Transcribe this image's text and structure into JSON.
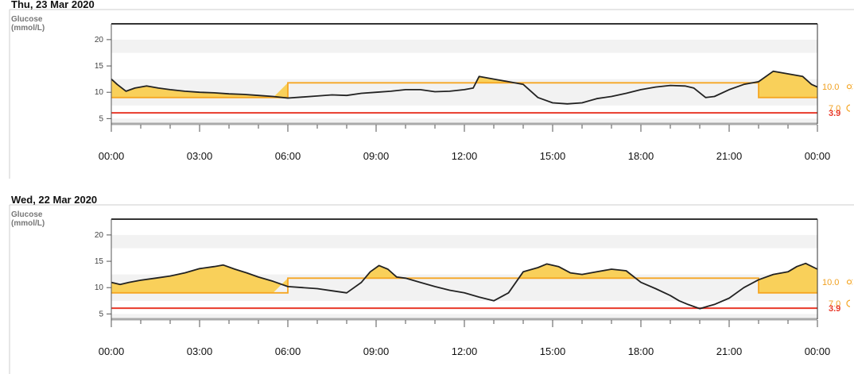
{
  "colors": {
    "target": "#f5a623",
    "fill": "#f9d05a",
    "low": "#e8392a",
    "curve": "#222222",
    "band": "#f2f2f2"
  },
  "chart_data": [
    {
      "type": "area",
      "title": "Thu, 23 Mar 2020",
      "ylabel": "Glucose\n(mmol/L)",
      "yticks": [
        "5",
        "10",
        "15",
        "20"
      ],
      "ylim": [
        4,
        23
      ],
      "xticks": [
        "00:00",
        "03:00",
        "06:00",
        "09:00",
        "12:00",
        "15:00",
        "18:00",
        "21:00",
        "00:00"
      ],
      "xlim": [
        0,
        24
      ],
      "target_series": [
        [
          0,
          9
        ],
        [
          6,
          9
        ],
        [
          6,
          11.8
        ],
        [
          22,
          11.8
        ],
        [
          22,
          9
        ],
        [
          24,
          9
        ]
      ],
      "low_threshold": 6.1,
      "range_labels": {
        "upper": "10.0",
        "lower": "7.0",
        "low": "3.9"
      },
      "range_icons": {
        "upper": "sun-icon",
        "lower": "moon-icon"
      },
      "series": [
        {
          "x": [
            0,
            0.2,
            0.5,
            0.8,
            1.2,
            1.6,
            2.0,
            2.5,
            3.0,
            3.5,
            4.0,
            4.5,
            5.0,
            5.5,
            6.0,
            6.5,
            7.0,
            7.5,
            8.0,
            8.5,
            9.0,
            9.5,
            10.0,
            10.5,
            11.0,
            11.5,
            12.0,
            12.3,
            12.5,
            13.0,
            13.5,
            14.0,
            14.5,
            15.0,
            15.5,
            16.0,
            16.5,
            17.0,
            17.5,
            18.0,
            18.5,
            19.0,
            19.5,
            19.8,
            20.2,
            20.5,
            21.0,
            21.5,
            22.0,
            22.5,
            23.0,
            23.5,
            23.8,
            24.0
          ],
          "y": [
            12.5,
            11.5,
            10.2,
            10.8,
            11.2,
            10.8,
            10.5,
            10.2,
            10.0,
            9.9,
            9.7,
            9.6,
            9.4,
            9.2,
            8.9,
            9.1,
            9.3,
            9.5,
            9.4,
            9.8,
            10.0,
            10.2,
            10.5,
            10.5,
            10.1,
            10.2,
            10.5,
            10.8,
            13.0,
            12.5,
            12.0,
            11.5,
            9.0,
            8.0,
            7.8,
            8.0,
            8.8,
            9.2,
            9.8,
            10.5,
            11.0,
            11.3,
            11.2,
            10.8,
            9.0,
            9.2,
            10.5,
            11.5,
            12.0,
            14.0,
            13.5,
            13.0,
            11.5,
            11.0
          ]
        }
      ]
    },
    {
      "type": "area",
      "title": "Wed, 22 Mar 2020",
      "ylabel": "Glucose\n(mmol/L)",
      "yticks": [
        "5",
        "10",
        "15",
        "20"
      ],
      "ylim": [
        4,
        23
      ],
      "xticks": [
        "00:00",
        "03:00",
        "06:00",
        "09:00",
        "12:00",
        "15:00",
        "18:00",
        "21:00",
        "00:00"
      ],
      "xlim": [
        0,
        24
      ],
      "target_series": [
        [
          0,
          9
        ],
        [
          6,
          9
        ],
        [
          6,
          11.8
        ],
        [
          22,
          11.8
        ],
        [
          22,
          9
        ],
        [
          24,
          9
        ]
      ],
      "low_threshold": 6.1,
      "range_labels": {
        "upper": "10.0",
        "lower": "7.0",
        "low": "3.9"
      },
      "range_icons": {
        "upper": "sun-icon",
        "lower": "moon-icon"
      },
      "series": [
        {
          "x": [
            0,
            0.3,
            0.6,
            1.0,
            1.5,
            2.0,
            2.5,
            3.0,
            3.5,
            3.8,
            4.2,
            4.6,
            5.0,
            5.5,
            6.0,
            6.5,
            7.0,
            7.5,
            8.0,
            8.5,
            8.8,
            9.1,
            9.4,
            9.7,
            10.0,
            10.5,
            11.0,
            11.5,
            12.0,
            12.5,
            13.0,
            13.5,
            14.0,
            14.5,
            14.8,
            15.2,
            15.6,
            16.0,
            16.5,
            17.0,
            17.5,
            18.0,
            18.5,
            19.0,
            19.3,
            19.6,
            20.0,
            20.5,
            21.0,
            21.5,
            22.0,
            22.5,
            23.0,
            23.3,
            23.6,
            24.0
          ],
          "y": [
            11.0,
            10.6,
            11.0,
            11.4,
            11.8,
            12.2,
            12.8,
            13.6,
            14.0,
            14.3,
            13.5,
            12.8,
            12.0,
            11.2,
            10.2,
            10.0,
            9.8,
            9.4,
            9.0,
            11.0,
            13.0,
            14.2,
            13.5,
            12.0,
            11.8,
            11.0,
            10.2,
            9.5,
            9.0,
            8.2,
            7.5,
            9.0,
            13.0,
            13.8,
            14.5,
            14.0,
            12.8,
            12.5,
            13.0,
            13.5,
            13.2,
            11.0,
            9.8,
            8.5,
            7.5,
            6.8,
            6.0,
            6.8,
            8.0,
            10.0,
            11.5,
            12.5,
            13.0,
            14.0,
            14.6,
            13.5
          ]
        }
      ]
    }
  ]
}
